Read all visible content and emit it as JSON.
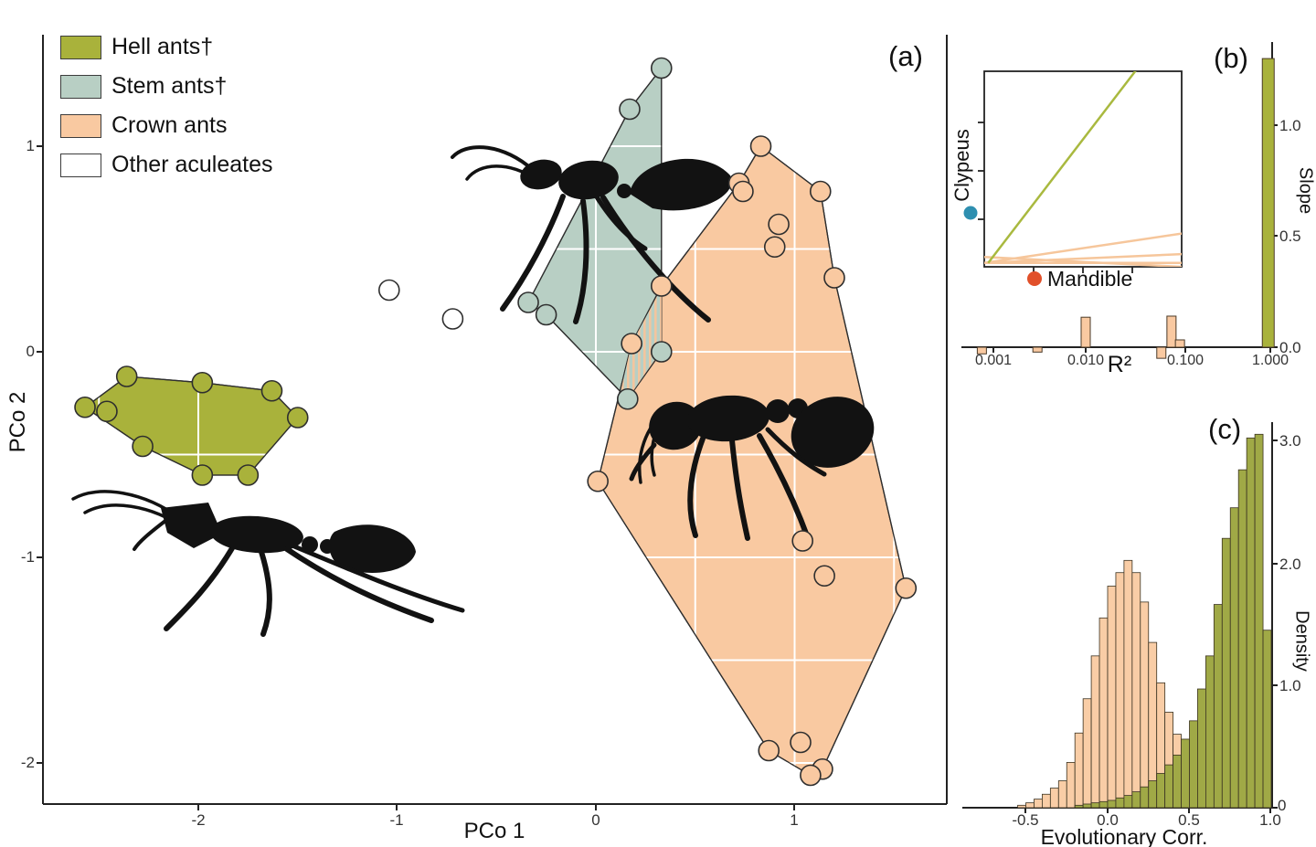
{
  "figure": {
    "panels": {
      "a": {
        "label": "(a)",
        "x_label": "PCo 1",
        "y_label": "PCo 2",
        "x_ticks": [
          "-2",
          "-1",
          "0",
          "1"
        ],
        "y_ticks": [
          "1",
          "0",
          "-1",
          "-2"
        ],
        "legend": [
          {
            "label": "Hell ants†",
            "color": "#a9b23b"
          },
          {
            "label": "Stem ants†",
            "color": "#b8cfc4"
          },
          {
            "label": "Crown ants",
            "color": "#f9c9a1"
          },
          {
            "label": "Other aculeates",
            "color": "#ffffff"
          }
        ]
      },
      "b": {
        "label": "(b)",
        "x_label": "R²",
        "y_label": "Slope",
        "x_ticks": [
          "0.001",
          "0.010",
          "0.100",
          "1.000"
        ],
        "y_ticks": [
          "1.0",
          "0.5",
          "0.0"
        ],
        "inset": {
          "x_label": "Mandible",
          "y_label": "Clypeus",
          "x_dot_color": "#e1502a",
          "y_dot_color": "#2e8fb0"
        }
      },
      "c": {
        "label": "(c)",
        "x_label": "Evolutionary Corr.",
        "y_label": "Density",
        "x_ticks": [
          "-0.5",
          "0.0",
          "0.5",
          "1.0"
        ],
        "y_ticks": [
          "3.0",
          "2.0",
          "1.0",
          "0"
        ]
      }
    }
  },
  "chart_data": [
    {
      "type": "scatter",
      "panel": "a",
      "xlabel": "PCo 1",
      "ylabel": "PCo 2",
      "xlim": [
        -2.78,
        1.76
      ],
      "ylim": [
        -2.2,
        1.54
      ],
      "grid": {
        "on": true,
        "step": 0.5,
        "color": "#ffffff"
      },
      "point_outline": "#2e2e2e",
      "groups": [
        {
          "name": "Hell ants",
          "color": "#a9b23b",
          "points": [
            [
              -2.57,
              -0.27
            ],
            [
              -2.46,
              -0.29
            ],
            [
              -2.36,
              -0.12
            ],
            [
              -2.28,
              -0.46
            ],
            [
              -1.98,
              -0.6
            ],
            [
              -1.98,
              -0.15
            ],
            [
              -1.75,
              -0.6
            ],
            [
              -1.63,
              -0.19
            ],
            [
              -1.5,
              -0.32
            ]
          ],
          "hull": [
            [
              -2.57,
              -0.27
            ],
            [
              -2.36,
              -0.12
            ],
            [
              -1.98,
              -0.15
            ],
            [
              -1.63,
              -0.19
            ],
            [
              -1.5,
              -0.32
            ],
            [
              -1.75,
              -0.6
            ],
            [
              -1.98,
              -0.6
            ],
            [
              -2.28,
              -0.46
            ]
          ]
        },
        {
          "name": "Stem ants",
          "color": "#b8cfc4",
          "points": [
            [
              0.33,
              1.38
            ],
            [
              0.17,
              1.18
            ],
            [
              -0.34,
              0.24
            ],
            [
              -0.25,
              0.18
            ],
            [
              0.33,
              0.0
            ],
            [
              0.16,
              -0.23
            ]
          ],
          "hull": [
            [
              0.33,
              1.38
            ],
            [
              0.33,
              0.0
            ],
            [
              0.16,
              -0.23
            ],
            [
              -0.25,
              0.18
            ],
            [
              -0.34,
              0.24
            ],
            [
              0.17,
              1.18
            ]
          ]
        },
        {
          "name": "Crown ants",
          "color": "#f9c9a1",
          "points": [
            [
              0.83,
              1.0
            ],
            [
              0.72,
              0.82
            ],
            [
              0.74,
              0.78
            ],
            [
              1.13,
              0.78
            ],
            [
              0.92,
              0.62
            ],
            [
              0.9,
              0.51
            ],
            [
              1.2,
              0.36
            ],
            [
              0.33,
              0.32
            ],
            [
              0.18,
              0.04
            ],
            [
              0.01,
              -0.63
            ],
            [
              1.04,
              -0.92
            ],
            [
              1.15,
              -1.09
            ],
            [
              1.56,
              -1.15
            ],
            [
              0.87,
              -1.94
            ],
            [
              1.03,
              -1.9
            ],
            [
              1.14,
              -2.03
            ],
            [
              1.08,
              -2.06
            ]
          ],
          "hull": [
            [
              0.83,
              1.0
            ],
            [
              1.13,
              0.78
            ],
            [
              1.2,
              0.36
            ],
            [
              1.56,
              -1.15
            ],
            [
              1.14,
              -2.03
            ],
            [
              1.08,
              -2.06
            ],
            [
              0.87,
              -1.94
            ],
            [
              0.01,
              -0.63
            ],
            [
              0.18,
              0.04
            ],
            [
              0.33,
              0.32
            ],
            [
              0.72,
              0.82
            ]
          ]
        },
        {
          "name": "Other aculeates",
          "color": "#ffffff",
          "points": [
            [
              -1.04,
              0.3
            ],
            [
              -0.72,
              0.16
            ]
          ],
          "hull": []
        }
      ],
      "overlap_hatch": [
        [
          0.33,
          0.31
        ],
        [
          0.33,
          0.01
        ],
        [
          0.16,
          -0.23
        ],
        [
          0.125,
          -0.19
        ],
        [
          0.18,
          0.04
        ]
      ]
    },
    {
      "type": "bar",
      "panel": "b",
      "xlabel": "R²",
      "ylabel": "Slope",
      "x_scale": "log10",
      "xlim": [
        0.0005,
        1.3
      ],
      "ylim": [
        -0.08,
        1.38
      ],
      "bar_outline": "#4a3a28",
      "bars": [
        {
          "r2": 0.00075,
          "slope": -0.03,
          "color": "#f9c9a1"
        },
        {
          "r2": 0.003,
          "slope": -0.022,
          "color": "#f9c9a1"
        },
        {
          "r2": 0.01,
          "slope": 0.135,
          "color": "#f9c9a1"
        },
        {
          "r2": 0.066,
          "slope": -0.05,
          "color": "#f9c9a1"
        },
        {
          "r2": 0.085,
          "slope": 0.14,
          "color": "#f9c9a1"
        },
        {
          "r2": 0.105,
          "slope": 0.033,
          "color": "#f9c9a1"
        },
        {
          "r2": 0.95,
          "slope": 1.3,
          "color": "#a9b23b"
        }
      ],
      "inset_lines": {
        "green": {
          "color": "#a9b93f",
          "x": [
            0.02,
            0.78
          ],
          "y": [
            0.02,
            1.02
          ]
        },
        "peach_color": "#f6c69b",
        "peach": [
          {
            "x": [
              0,
              1
            ],
            "y": [
              0.02,
              0.17
            ]
          },
          {
            "x": [
              0,
              1
            ],
            "y": [
              0.02,
              0.065
            ]
          },
          {
            "x": [
              0,
              1
            ],
            "y": [
              0.02,
              0.02
            ]
          },
          {
            "x": [
              0,
              1
            ],
            "y": [
              0.05,
              0.0
            ]
          }
        ]
      }
    },
    {
      "type": "histogram",
      "panel": "c",
      "xlabel": "Evolutionary Corr.",
      "ylabel": "Density",
      "bin_width": 0.05,
      "xlim": [
        -0.9,
        1.0
      ],
      "ylim": [
        0,
        3.2
      ],
      "bar_outline": "#3b3322",
      "series": [
        {
          "name": "Crown ants",
          "color": "#f9cda6",
          "start": -0.55,
          "values": [
            0.02,
            0.04,
            0.07,
            0.11,
            0.16,
            0.22,
            0.37,
            0.61,
            0.89,
            1.24,
            1.55,
            1.81,
            1.92,
            2.02,
            1.92,
            1.68,
            1.35,
            1.02,
            0.78,
            0.6,
            0.4,
            0.25,
            0.15,
            0.08
          ]
        },
        {
          "name": "Hell ants",
          "color": "#a0a946",
          "start": -0.2,
          "values": [
            0.02,
            0.03,
            0.04,
            0.05,
            0.06,
            0.08,
            0.1,
            0.13,
            0.17,
            0.22,
            0.28,
            0.35,
            0.43,
            0.56,
            0.71,
            0.97,
            1.24,
            1.66,
            2.2,
            2.45,
            2.76,
            3.02,
            3.05,
            1.45
          ]
        }
      ]
    }
  ]
}
